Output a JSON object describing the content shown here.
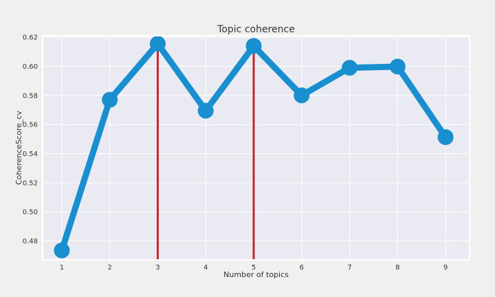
{
  "chart_data": {
    "type": "line",
    "title": "Topic coherence",
    "xlabel": "Number of topics",
    "ylabel": "CoherenceScore_cv",
    "x": [
      1,
      2,
      3,
      4,
      5,
      6,
      7,
      8,
      9
    ],
    "x_tick_labels": [
      "1",
      "2",
      "3",
      "4",
      "5",
      "6",
      "7",
      "8",
      "9"
    ],
    "xlim": [
      0.6,
      9.5
    ],
    "ylim": [
      0.467,
      0.621
    ],
    "y_ticks": [
      0.48,
      0.5,
      0.52,
      0.54,
      0.56,
      0.58,
      0.6,
      0.62
    ],
    "y_tick_labels": [
      "0.48",
      "0.50",
      "0.52",
      "0.54",
      "0.56",
      "0.58",
      "0.60",
      "0.62"
    ],
    "series": [
      {
        "values": [
          0.4735,
          0.577,
          0.6155,
          0.5695,
          0.614,
          0.58,
          0.599,
          0.5998,
          0.5513
        ],
        "color": "#1a8fd0"
      }
    ],
    "vertical_lines": [
      {
        "x": 3,
        "color": "#c62828"
      },
      {
        "x": 5,
        "color": "#c62828"
      }
    ],
    "grid": true,
    "background": "#eaeaf2",
    "frame_color": "#ffffff"
  }
}
